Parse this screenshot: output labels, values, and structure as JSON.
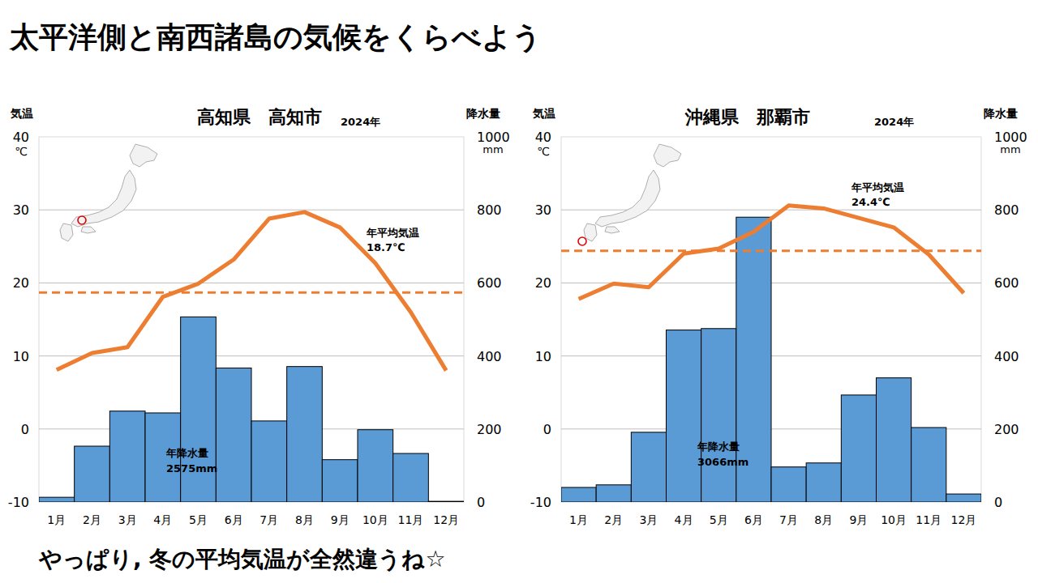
{
  "page": {
    "title": "太平洋側と南西諸島の気候をくらべよう",
    "caption": "やっぱり, 冬の平均気温が全然違うね☆"
  },
  "chart_data": [
    {
      "type": "bar",
      "title": "高知県　高知市",
      "subtitle": "2024年",
      "categories": [
        "1月",
        "2月",
        "3月",
        "4月",
        "5月",
        "6月",
        "7月",
        "8月",
        "9月",
        "10月",
        "11月",
        "12月"
      ],
      "ylabel": "気温",
      "y_unit": "℃",
      "y2label": "降水量",
      "y2_unit": "mm",
      "ylim": [
        -10,
        40
      ],
      "yticks": [
        -10,
        0,
        10,
        20,
        30,
        40
      ],
      "y2lim": [
        0,
        1000
      ],
      "y2ticks": [
        0,
        200,
        400,
        600,
        800,
        1000
      ],
      "grid": true,
      "series": [
        {
          "name": "降水量",
          "type": "bar",
          "axis": "y2",
          "color": "#5b9bd5",
          "values": [
            13,
            153,
            249,
            244,
            507,
            367,
            222,
            371,
            116,
            198,
            133,
            2
          ]
        },
        {
          "name": "気温",
          "type": "line",
          "axis": "y",
          "color": "#ed7d31",
          "values": [
            8.1,
            10.4,
            11.2,
            18.1,
            19.9,
            23.2,
            28.8,
            29.7,
            27.6,
            22.7,
            16.0,
            8.0
          ]
        }
      ],
      "mean_line": {
        "label": "年平均気温",
        "value": 18.7,
        "value_label": "18.7℃",
        "color": "#ed7d31",
        "line_style": "dashed"
      },
      "total_note": {
        "label": "年降水量",
        "text": "2575mm"
      }
    },
    {
      "type": "bar",
      "title": "沖縄県　那覇市",
      "subtitle": "2024年",
      "categories": [
        "1月",
        "2月",
        "3月",
        "4月",
        "5月",
        "6月",
        "7月",
        "8月",
        "9月",
        "10月",
        "11月",
        "12月"
      ],
      "ylabel": "気温",
      "y_unit": "℃",
      "y2label": "降水量",
      "y2_unit": "mm",
      "ylim": [
        -10,
        40
      ],
      "yticks": [
        -10,
        0,
        10,
        20,
        30,
        40
      ],
      "y2lim": [
        0,
        1000
      ],
      "y2ticks": [
        0,
        200,
        400,
        600,
        800,
        1000
      ],
      "grid": true,
      "series": [
        {
          "name": "降水量",
          "type": "bar",
          "axis": "y2",
          "color": "#5b9bd5",
          "values": [
            40,
            47,
            191,
            471,
            475,
            780,
            96,
            107,
            293,
            340,
            204,
            22
          ]
        },
        {
          "name": "気温",
          "type": "line",
          "axis": "y",
          "color": "#ed7d31",
          "values": [
            17.8,
            19.9,
            19.4,
            24.0,
            24.7,
            27.0,
            30.6,
            30.2,
            28.9,
            27.6,
            23.9,
            18.6
          ]
        }
      ],
      "mean_line": {
        "label": "年平均気温",
        "value": 24.4,
        "value_label": "24.4℃",
        "color": "#ed7d31",
        "line_style": "dashed"
      },
      "total_note": {
        "label": "年降水量",
        "text": "3066mm"
      }
    }
  ]
}
